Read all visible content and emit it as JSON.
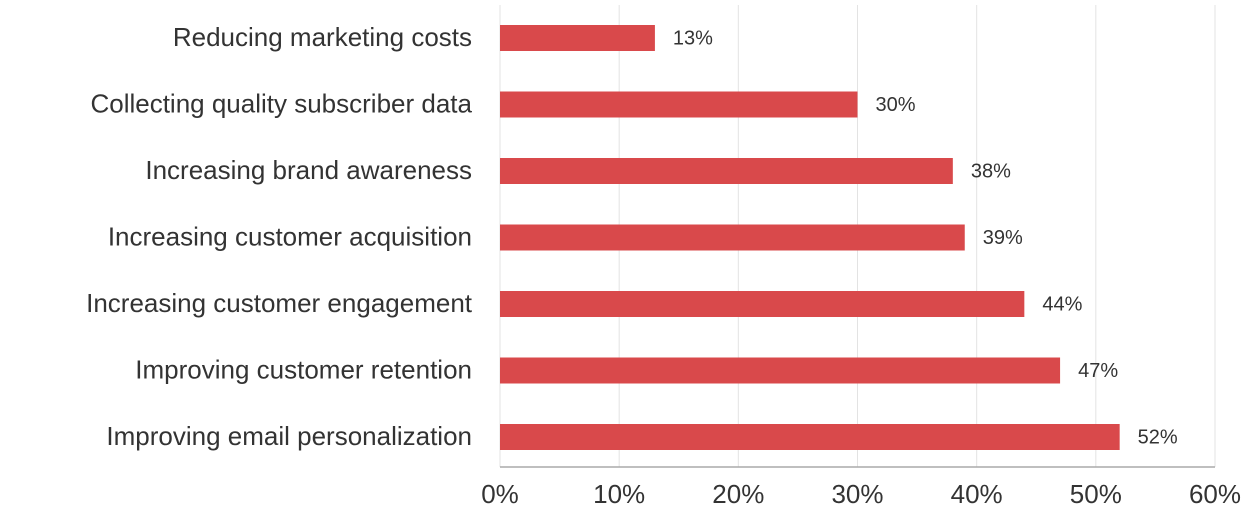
{
  "chart_data": {
    "type": "bar",
    "orientation": "horizontal",
    "categories": [
      "Reducing marketing costs",
      "Collecting quality subscriber data",
      "Increasing brand awareness",
      "Increasing customer acquisition",
      "Increasing customer engagement",
      "Improving customer retention",
      "Improving email personalization"
    ],
    "values": [
      13,
      30,
      38,
      39,
      44,
      47,
      52
    ],
    "value_labels": [
      "13%",
      "30%",
      "38%",
      "39%",
      "44%",
      "47%",
      "52%"
    ],
    "color": "#d9494b",
    "xlim": [
      0,
      60
    ],
    "xticks": [
      {
        "value": 0,
        "label": "0%"
      },
      {
        "value": 10,
        "label": "10%"
      },
      {
        "value": 20,
        "label": "20%"
      },
      {
        "value": 30,
        "label": "30%"
      },
      {
        "value": 40,
        "label": "40%"
      },
      {
        "value": 50,
        "label": "50%"
      },
      {
        "value": 60,
        "label": "60%"
      }
    ],
    "grid": true
  }
}
